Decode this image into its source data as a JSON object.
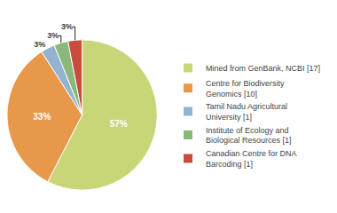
{
  "chart_data": {
    "type": "pie",
    "categories": [
      "Mined from GenBank, NCBI [17]",
      "Centre for Biodiversity\nGenomics [10]",
      "Tamil Nadu Agricultural\nUniversity [1]",
      "Institute of Ecology and\nBiological Resources [1]",
      "Canadian Centre for DNA\nBarcoding [1]"
    ],
    "values": [
      57,
      33,
      3,
      3,
      3
    ],
    "value_labels": [
      "57%",
      "33%",
      "3%",
      "3%",
      "3%"
    ],
    "colors": [
      "#c8d678",
      "#e8984a",
      "#92b4d0",
      "#8ab878",
      "#c84c3c"
    ],
    "data_labels": true,
    "legend": "right"
  }
}
